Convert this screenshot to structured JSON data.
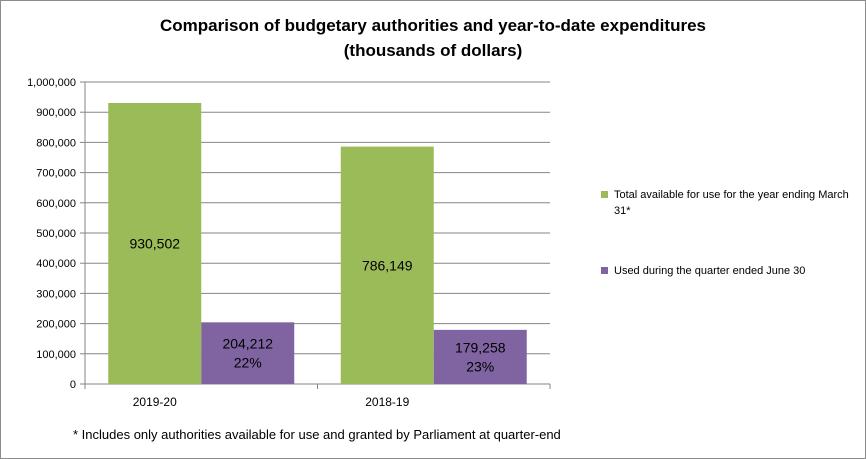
{
  "chart_data": {
    "type": "bar",
    "title": "Comparison  of  budgetary  authorities  and  year-to-date  expenditures",
    "subtitle": "(thousands  of  dollars)",
    "categories": [
      "2019-20",
      "2018-19"
    ],
    "series": [
      {
        "name": "Total available for use for the year ending March 31*",
        "values": [
          930502,
          786149
        ],
        "labels": [
          [
            "930,502"
          ],
          [
            "786,149"
          ]
        ],
        "color": "#9bbb59"
      },
      {
        "name": "Used during the quarter ended June 30",
        "values": [
          204212,
          179258
        ],
        "labels": [
          [
            "204,212",
            "22%"
          ],
          [
            "179,258",
            "23%"
          ]
        ],
        "color": "#8064a2"
      }
    ],
    "ylim": [
      0,
      1000000
    ],
    "yticks": [
      0,
      100000,
      200000,
      300000,
      400000,
      500000,
      600000,
      700000,
      800000,
      900000,
      1000000
    ],
    "ytick_labels": [
      "0",
      "100,000",
      "200,000",
      "300,000",
      "400,000",
      "500,000",
      "600,000",
      "700,000",
      "800,000",
      "900,000",
      "1,000,000"
    ],
    "grid": true,
    "legend_position": "right",
    "footnote": "* Includes only authorities available for use and granted by Parliament at quarter-end"
  }
}
